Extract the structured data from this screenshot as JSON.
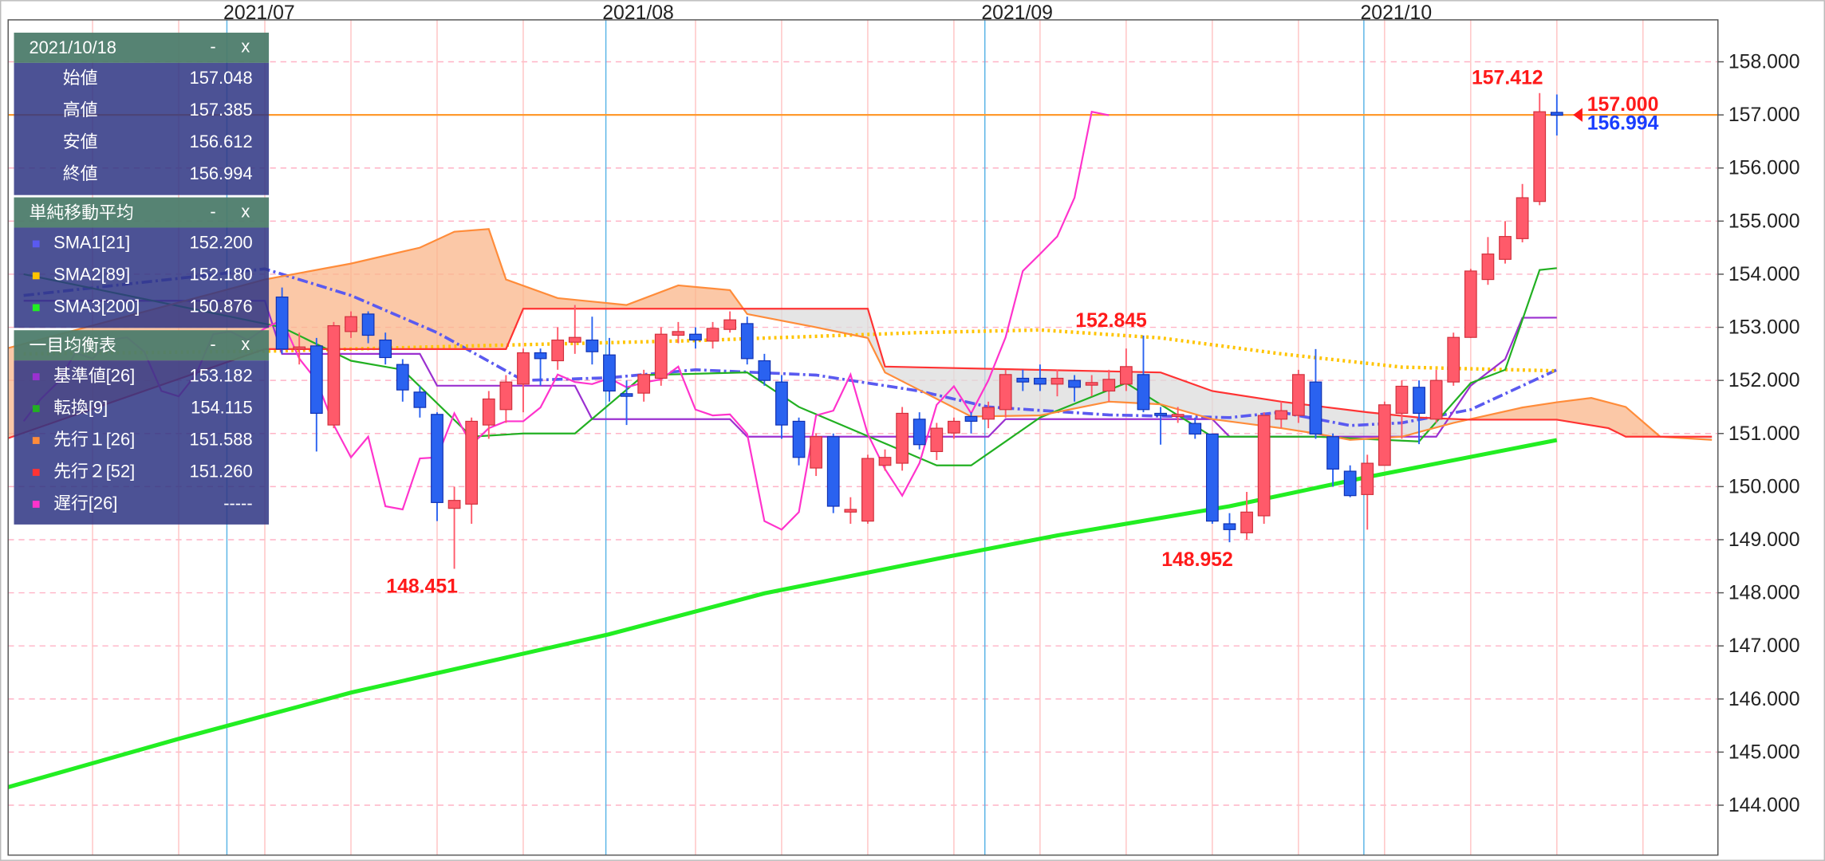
{
  "chart_data": {
    "type": "candlestick",
    "xlim": [
      -12.9,
      86.35
    ],
    "xticks": [
      {
        "value": 0,
        "label": "2021/07"
      },
      {
        "value": 22,
        "label": "2021/08"
      },
      {
        "value": 44,
        "label": "2021/09"
      },
      {
        "value": 66,
        "label": "2021/10"
      }
    ],
    "x_minor_ticks": [
      -8,
      -3,
      2,
      7,
      12,
      17,
      27,
      32,
      37,
      42,
      47,
      52,
      57,
      62,
      67,
      72,
      77,
      82
    ],
    "ylim": [
      143.06,
      158.79
    ],
    "yticks": [
      {
        "value": 144,
        "label": "144.000"
      },
      {
        "value": 145,
        "label": "145.000"
      },
      {
        "value": 146,
        "label": "146.000"
      },
      {
        "value": 147,
        "label": "147.000"
      },
      {
        "value": 148,
        "label": "148.000"
      },
      {
        "value": 149,
        "label": "149.000"
      },
      {
        "value": 150,
        "label": "150.000"
      },
      {
        "value": 151,
        "label": "151.000"
      },
      {
        "value": 152,
        "label": "152.000"
      },
      {
        "value": 153,
        "label": "153.000"
      },
      {
        "value": 154,
        "label": "154.000"
      },
      {
        "value": 155,
        "label": "155.000"
      },
      {
        "value": 156,
        "label": "156.000"
      },
      {
        "value": 157,
        "label": "157.000"
      },
      {
        "value": 158,
        "label": "158.000"
      }
    ],
    "grid": true,
    "up_color": "#ff5a6a",
    "down_color": "#2a62f0",
    "x": [
      3,
      4,
      5,
      6,
      7,
      8,
      9,
      10,
      11,
      12,
      13,
      14,
      15,
      16,
      17,
      18,
      19,
      20,
      21,
      22,
      23,
      24,
      25,
      26,
      27,
      28,
      29,
      30,
      31,
      32,
      33,
      34,
      35,
      36,
      37,
      38,
      39,
      40,
      41,
      42,
      43,
      44,
      45,
      46,
      47,
      48,
      49,
      50,
      51,
      52,
      53,
      54,
      55,
      56,
      57,
      58,
      59,
      60,
      61,
      62,
      63,
      64,
      65,
      66,
      67,
      68,
      69,
      70,
      71,
      72,
      73,
      74,
      75,
      76,
      77
    ],
    "open": [
      153.57,
      152.59,
      152.65,
      151.16,
      152.92,
      153.25,
      152.76,
      152.3,
      151.78,
      151.36,
      149.59,
      149.67,
      151.16,
      151.45,
      151.93,
      152.52,
      152.37,
      152.72,
      152.76,
      152.48,
      151.75,
      151.76,
      152.04,
      152.85,
      152.87,
      152.74,
      152.96,
      153.07,
      152.37,
      151.97,
      151.23,
      150.35,
      150.94,
      149.52,
      149.35,
      150.4,
      150.44,
      151.27,
      150.66,
      151.01,
      151.32,
      151.27,
      151.45,
      152.04,
      152.04,
      151.93,
      152.0,
      151.91,
      151.8,
      151.93,
      152.11,
      151.38,
      151.32,
      151.19,
      150.99,
      149.3,
      149.13,
      149.45,
      151.27,
      151.34,
      151.97,
      150.94,
      150.29,
      149.85,
      150.4,
      151.38,
      151.87,
      151.27,
      151.97,
      152.81,
      153.9,
      154.28,
      154.67,
      155.37,
      157.048
    ],
    "high": [
      153.75,
      152.9,
      152.8,
      153.1,
      153.3,
      153.3,
      152.9,
      152.4,
      151.9,
      151.4,
      150.0,
      151.3,
      151.8,
      152.1,
      152.6,
      152.6,
      153.0,
      153.42,
      153.2,
      152.8,
      152.0,
      152.2,
      153.0,
      153.1,
      153.0,
      153.1,
      153.3,
      153.2,
      152.5,
      152.1,
      151.3,
      151.0,
      151.0,
      149.8,
      150.6,
      150.7,
      151.5,
      151.4,
      151.2,
      151.3,
      151.4,
      151.6,
      152.2,
      152.2,
      152.3,
      152.2,
      152.1,
      152.1,
      152.2,
      152.6,
      152.845,
      151.5,
      151.5,
      151.3,
      151.0,
      149.5,
      149.9,
      151.4,
      151.6,
      152.2,
      152.59,
      151.0,
      150.4,
      150.6,
      151.6,
      152.0,
      152.0,
      152.2,
      152.9,
      154.1,
      154.7,
      155.0,
      155.7,
      157.412,
      157.385
    ],
    "low": [
      152.5,
      152.3,
      150.66,
      151.1,
      152.8,
      152.7,
      152.3,
      151.6,
      151.3,
      149.35,
      148.451,
      149.3,
      150.9,
      151.2,
      151.4,
      151.9,
      152.2,
      152.5,
      152.3,
      151.6,
      151.16,
      151.6,
      151.9,
      152.7,
      152.6,
      152.6,
      152.9,
      152.3,
      151.9,
      150.9,
      150.4,
      150.2,
      149.5,
      149.3,
      149.3,
      150.3,
      150.3,
      150.7,
      150.5,
      150.9,
      151.0,
      151.1,
      151.3,
      151.8,
      151.8,
      151.7,
      151.6,
      151.7,
      151.6,
      151.8,
      151.4,
      150.79,
      151.2,
      150.9,
      149.3,
      148.952,
      149.0,
      149.3,
      151.1,
      151.2,
      150.9,
      150.0,
      149.8,
      149.19,
      150.4,
      150.9,
      150.8,
      151.2,
      151.9,
      152.8,
      153.8,
      154.2,
      154.6,
      155.3,
      156.612
    ],
    "close": [
      152.59,
      152.63,
      151.38,
      153.03,
      153.2,
      152.85,
      152.43,
      151.82,
      151.49,
      149.7,
      149.74,
      151.23,
      151.65,
      151.97,
      152.52,
      152.41,
      152.76,
      152.81,
      152.54,
      151.8,
      151.7,
      152.11,
      152.87,
      152.92,
      152.76,
      152.98,
      153.14,
      152.41,
      152.0,
      151.16,
      150.55,
      150.94,
      149.63,
      149.57,
      150.53,
      150.55,
      151.38,
      150.79,
      151.1,
      151.23,
      151.23,
      151.49,
      152.11,
      151.97,
      151.93,
      152.04,
      151.87,
      151.96,
      152.02,
      152.26,
      151.45,
      151.34,
      151.36,
      150.99,
      149.35,
      149.19,
      149.52,
      151.34,
      151.43,
      152.11,
      150.99,
      150.33,
      149.83,
      150.44,
      151.54,
      151.89,
      151.38,
      152.0,
      152.81,
      154.06,
      154.38,
      154.71,
      155.44,
      157.06,
      156.994
    ],
    "annotations": [
      {
        "x": 76,
        "value": 157.412,
        "position": "above"
      },
      {
        "x": 13,
        "value": 148.451,
        "position": "below"
      },
      {
        "x": 53,
        "value": 152.845,
        "position": "above"
      },
      {
        "x": 58,
        "value": 148.952,
        "position": "below"
      }
    ],
    "price_labels": [
      {
        "value": 157,
        "label": "157.000",
        "color": "#ff1a1a"
      },
      {
        "value": 156.994,
        "color": "#1a3dff"
      }
    ],
    "price_line_color": "#ff9a2e",
    "ohlc_panel": {
      "title": "2021/10/18",
      "buttons": [
        "-",
        "x"
      ],
      "rows": [
        {
          "label": "始値",
          "value": "157.048"
        },
        {
          "label": "高値",
          "value": "157.385"
        },
        {
          "label": "安値",
          "value": "156.612"
        },
        {
          "label": "終値",
          "value": "156.994"
        }
      ]
    },
    "indicators": [
      {
        "title": "単純移動平均",
        "buttons": [
          "-",
          "x"
        ],
        "series": [
          {
            "name": "SMA1[21]",
            "last": "152.200",
            "color": "#5a5af0",
            "style": "dashdot",
            "width": 2.5,
            "x": [
              -12,
              2,
              7,
              12,
              17,
              22,
              27,
              34,
              40,
              44,
              51,
              58,
              61,
              65,
              68,
              72,
              75,
              77
            ],
            "values": [
              153.6,
              154.1,
              153.6,
              152.9,
              152.0,
              152.05,
              152.2,
              152.1,
              151.8,
              151.5,
              151.35,
              151.3,
              151.4,
              151.15,
              151.2,
              151.45,
              151.9,
              152.2
            ]
          },
          {
            "name": "SMA2[89]",
            "last": "152.180",
            "color": "#ffc400",
            "style": "dotted",
            "width": 3,
            "x": [
              -12,
              2,
              14,
              27,
              40,
              47,
              54,
              61,
              68,
              77
            ],
            "values": [
              152.5,
              152.55,
              152.65,
              152.75,
              152.9,
              152.95,
              152.8,
              152.5,
              152.25,
              152.18
            ]
          },
          {
            "name": "SMA3[200]",
            "last": "150.876",
            "color": "#22ee22",
            "style": "solid",
            "width": 3.5,
            "x": [
              -13,
              -3,
              7,
              16,
              22,
              31,
              41,
              48,
              58,
              66,
              77
            ],
            "values": [
              144.33,
              145.25,
              146.12,
              146.78,
              147.22,
              147.99,
              148.64,
              149.08,
              149.63,
              150.18,
              150.876
            ]
          }
        ]
      },
      {
        "title": "一目均衡表",
        "buttons": [
          "-",
          "x"
        ],
        "cloud_colors": {
          "bull": "#f9b58a",
          "bear": "#dcdcdc"
        },
        "series": [
          {
            "name": "基準値[26]",
            "last": "153.182",
            "color": "#9b30d0",
            "style": "solid",
            "width": 1.5,
            "x": [
              -12,
              2,
              3,
              11,
              12,
              20,
              21,
              29,
              30,
              44,
              45,
              57,
              58,
              70,
              72,
              74,
              75,
              77
            ],
            "values": [
              153.5,
              153.5,
              152.5,
              152.5,
              151.9,
              151.9,
              151.27,
              151.27,
              150.94,
              150.94,
              151.27,
              151.27,
              150.94,
              150.94,
              151.9,
              152.4,
              153.18,
              153.182
            ]
          },
          {
            "name": "転換[9]",
            "last": "154.115",
            "color": "#22b022",
            "style": "solid",
            "width": 1.5,
            "x": [
              -12,
              3,
              7,
              10,
              14,
              17,
              20,
              24,
              30,
              33,
              41,
              43,
              47,
              52,
              57,
              63,
              69,
              72,
              74,
              76,
              77
            ],
            "values": [
              154.0,
              153.0,
              152.37,
              152.2,
              150.94,
              151.0,
              151.0,
              152.1,
              152.15,
              151.5,
              150.4,
              150.4,
              151.3,
              151.95,
              150.94,
              150.94,
              150.85,
              151.95,
              152.2,
              154.08,
              154.115
            ]
          },
          {
            "name": "先行１[26]",
            "last": "151.588",
            "color": "#ff8c3a",
            "style": "solid",
            "width": 1.5,
            "x": [
              -13,
              2,
              7,
              11,
              13,
              15,
              16,
              19,
              23,
              26,
              29,
              30,
              34,
              37,
              38,
              43,
              47,
              51,
              54,
              57,
              61,
              63,
              65,
              68,
              71,
              75,
              77,
              79,
              81,
              83,
              86
            ],
            "values": [
              152.6,
              153.9,
              154.2,
              154.5,
              154.8,
              154.85,
              153.9,
              153.55,
              153.42,
              153.79,
              153.7,
              153.25,
              153.0,
              152.8,
              152.15,
              151.32,
              151.34,
              151.6,
              151.55,
              151.27,
              151.1,
              151.0,
              150.88,
              150.94,
              151.2,
              151.49,
              151.588,
              151.67,
              151.5,
              150.94,
              150.88
            ]
          },
          {
            "name": "先行２[52]",
            "last": "151.260",
            "color": "#ff3333",
            "style": "solid",
            "width": 1.5,
            "x": [
              -13,
              2,
              16,
              17,
              37,
              38,
              54,
              57,
              61,
              66,
              69,
              72,
              77,
              80,
              81,
              86
            ],
            "values": [
              150.9,
              152.59,
              152.59,
              153.35,
              153.35,
              152.26,
              152.15,
              151.8,
              151.6,
              151.4,
              151.3,
              151.26,
              151.26,
              151.1,
              150.94,
              150.94
            ]
          },
          {
            "name": "遅行[26]",
            "last": "-----",
            "color": "#ff33cc",
            "style": "solid",
            "width": 1.5,
            "x": [
              -12,
              -11,
              -10,
              -9,
              -8,
              -7,
              -6,
              -5,
              -4,
              -3,
              -2,
              -1,
              0,
              1,
              2,
              3,
              4,
              5,
              6,
              7,
              8,
              9,
              10,
              11,
              12,
              13,
              14,
              15,
              16,
              17,
              18,
              19,
              20,
              21,
              22,
              23,
              24,
              25,
              26,
              27,
              28,
              29,
              30,
              31,
              32,
              33,
              34,
              35,
              36,
              37,
              38,
              39,
              40,
              41,
              42,
              43,
              44,
              45,
              46,
              47,
              48,
              49,
              50,
              51
            ],
            "values": [
              151.23,
              151.65,
              151.97,
              152.52,
              152.41,
              152.76,
              152.81,
              152.54,
              151.8,
              151.7,
              152.11,
              152.87,
              152.92,
              152.76,
              152.98,
              153.14,
              152.41,
              152.0,
              151.16,
              150.55,
              150.94,
              149.63,
              149.57,
              150.53,
              150.55,
              151.38,
              150.79,
              151.1,
              151.23,
              151.23,
              151.49,
              152.11,
              151.97,
              151.93,
              152.04,
              151.87,
              151.96,
              152.02,
              152.26,
              151.45,
              151.34,
              151.36,
              150.99,
              149.35,
              149.19,
              149.52,
              151.34,
              151.43,
              152.11,
              150.99,
              150.33,
              149.83,
              150.44,
              151.54,
              151.89,
              151.38,
              152.0,
              152.81,
              154.06,
              154.38,
              154.71,
              155.44,
              157.06,
              156.994
            ]
          }
        ]
      }
    ]
  }
}
